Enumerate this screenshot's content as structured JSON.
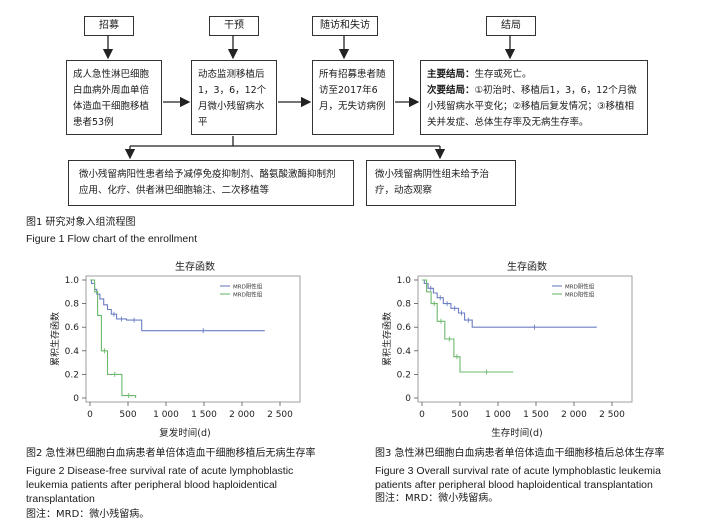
{
  "figure1": {
    "headers": [
      "招募",
      "干预",
      "随访和失访",
      "结局"
    ],
    "box_recruit": "成人急性淋巴细胞白血病外周血单倍体造血干细胞移植患者53例",
    "box_intervene": "动态监测移植后1，3，6，12个月微小残留病水平",
    "box_followup": "所有招募患者随访至2017年6月，无失访病例",
    "box_outcome_primary_label": "主要结局：",
    "box_outcome_primary_text": "生存或死亡。",
    "box_outcome_secondary_label": "次要结局：",
    "box_outcome_secondary_text": "①初治时、移植后1，3，6，12个月微小残留病水平变化；②移植后复发情况；③移植相关并发症、总体生存率及无病生存率。",
    "box_positive": "微小残留病阳性患者给予减停免疫抑制剂、酪氨酸激酶抑制剂应用、化疗、供者淋巴细胞输注、二次移植等",
    "box_negative": "微小残留病阴性组未给予治疗，动态观察",
    "caption_cn": "图1   研究对象入组流程图",
    "caption_en": "Figure 1    Flow chart of the enrollment"
  },
  "figure2": {
    "caption_cn": "图2   急性淋巴细胞白血病患者单倍体造血干细胞移植后无病生存率",
    "caption_en_1": "Figure 2    Disease-free survival rate of acute lymphoblastic",
    "caption_en_2": "leukemia patients after peripheral blood haploidentical",
    "caption_en_3": "transplantation",
    "note": "图注：MRD：微小残留病。"
  },
  "figure3": {
    "caption_cn": "图3   急性淋巴细胞白血病患者单倍体造血干细胞移植后总体生存率",
    "caption_en_1": "Figure 3    Overall survival rate of acute lymphoblastic leukemia",
    "caption_en_2": "patients after peripheral blood haploidentical transplantation",
    "note": "图注：MRD：微小残留病。"
  },
  "chart_data": [
    {
      "type": "line",
      "title": "生存函数",
      "xlabel": "复发时间(d)",
      "ylabel": "累积生存函数",
      "xlim": [
        0,
        2500
      ],
      "ylim": [
        0,
        1.0
      ],
      "xticks": [
        "0",
        "500",
        "1 000",
        "1 500",
        "2 000",
        "2 500"
      ],
      "yticks": [
        "0",
        "0.2",
        "0.4",
        "0.6",
        "0.8",
        "1.0"
      ],
      "legend_position": "top-right",
      "series": [
        {
          "name": "MRD阴性组",
          "color": "#6b7fc4",
          "x": [
            0,
            20,
            20,
            60,
            60,
            90,
            90,
            130,
            130,
            180,
            180,
            230,
            230,
            280,
            280,
            350,
            350,
            480,
            480,
            680,
            680,
            2300
          ],
          "y": [
            1.0,
            1.0,
            0.97,
            0.97,
            0.92,
            0.92,
            0.88,
            0.88,
            0.84,
            0.84,
            0.79,
            0.79,
            0.75,
            0.75,
            0.71,
            0.71,
            0.67,
            0.67,
            0.66,
            0.66,
            0.57,
            0.57
          ]
        },
        {
          "name": "MRD阳性组",
          "color": "#6db86d",
          "x": [
            0,
            60,
            60,
            100,
            100,
            150,
            150,
            230,
            230,
            420,
            420,
            600,
            600
          ],
          "y": [
            1.0,
            1.0,
            0.9,
            0.9,
            0.7,
            0.7,
            0.4,
            0.4,
            0.2,
            0.2,
            0.02,
            0.02,
            0.0
          ]
        }
      ]
    },
    {
      "type": "line",
      "title": "生存函数",
      "xlabel": "生存时间(d)",
      "ylabel": "累积生存函数",
      "xlim": [
        0,
        2500
      ],
      "ylim": [
        0,
        1.0
      ],
      "xticks": [
        "0",
        "500",
        "1 000",
        "1 500",
        "2 000",
        "2 500"
      ],
      "yticks": [
        "0",
        "0.2",
        "0.4",
        "0.6",
        "0.8",
        "1.0"
      ],
      "legend_position": "top-right",
      "series": [
        {
          "name": "MRD阴性组",
          "color": "#6b7fc4",
          "x": [
            0,
            30,
            30,
            80,
            80,
            150,
            150,
            200,
            200,
            280,
            280,
            380,
            380,
            480,
            480,
            560,
            560,
            660,
            660,
            2300
          ],
          "y": [
            1.0,
            1.0,
            0.97,
            0.97,
            0.93,
            0.93,
            0.89,
            0.89,
            0.85,
            0.85,
            0.8,
            0.8,
            0.76,
            0.76,
            0.72,
            0.72,
            0.66,
            0.66,
            0.6,
            0.6
          ]
        },
        {
          "name": "MRD阳性组",
          "color": "#6db86d",
          "x": [
            0,
            60,
            60,
            120,
            120,
            200,
            200,
            300,
            300,
            420,
            420,
            500,
            500,
            1200
          ],
          "y": [
            1.0,
            1.0,
            0.9,
            0.9,
            0.8,
            0.8,
            0.65,
            0.65,
            0.5,
            0.5,
            0.35,
            0.35,
            0.22,
            0.22
          ]
        }
      ]
    }
  ]
}
